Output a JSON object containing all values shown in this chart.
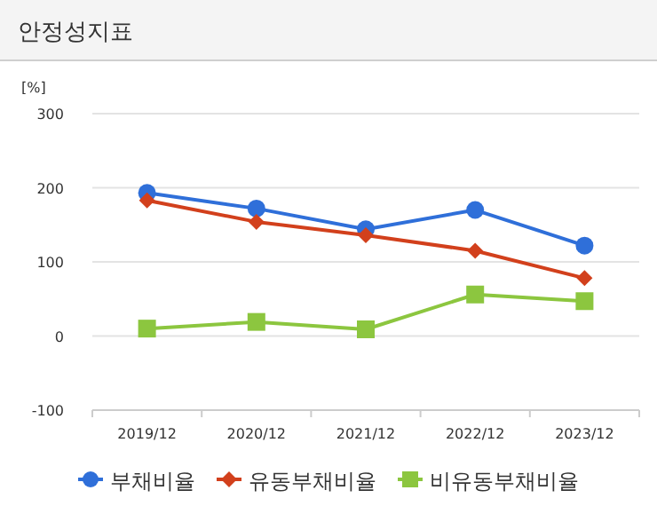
{
  "chart_data": {
    "type": "line",
    "title": "안정성지표",
    "ylabel": "[%]",
    "categories": [
      "2019/12",
      "2020/12",
      "2021/12",
      "2022/12",
      "2023/12"
    ],
    "series": [
      {
        "name": "부채비율",
        "color": "#2f6fd9",
        "marker": "circle",
        "values": [
          193,
          172,
          144,
          170,
          122
        ]
      },
      {
        "name": "유동부채비율",
        "color": "#d2401c",
        "marker": "diamond",
        "values": [
          183,
          154,
          136,
          115,
          78
        ]
      },
      {
        "name": "비유동부채비율",
        "color": "#8cc63f",
        "marker": "square",
        "values": [
          10,
          19,
          9,
          56,
          47
        ]
      }
    ],
    "ylim": [
      -100,
      300
    ],
    "yticks": [
      -100,
      0,
      100,
      200,
      300
    ],
    "grid": "y",
    "legend": "bottom"
  }
}
